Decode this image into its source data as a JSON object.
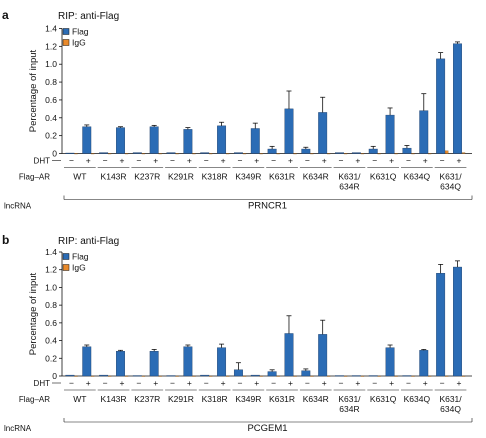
{
  "panels": [
    {
      "letter": "a",
      "title": "RIP: anti-Flag",
      "legend": [
        "Flag",
        "IgG"
      ],
      "ylabel": "Percentage of input",
      "row_labels": {
        "dht": "DHT",
        "flag_ar": "Flag–AR",
        "lncrna": "lncRNA"
      },
      "lncrna": "PRNCR1",
      "groups": [
        {
          "label": [
            "WT"
          ]
        },
        {
          "label": [
            "K143R"
          ]
        },
        {
          "label": [
            "K237R"
          ]
        },
        {
          "label": [
            "K291R"
          ]
        },
        {
          "label": [
            "K318R"
          ]
        },
        {
          "label": [
            "K349R"
          ]
        },
        {
          "label": [
            "K631R"
          ]
        },
        {
          "label": [
            "K634R"
          ]
        },
        {
          "label": [
            "K631/",
            "634R"
          ]
        },
        {
          "label": [
            "K631Q"
          ]
        },
        {
          "label": [
            "K634Q"
          ]
        },
        {
          "label": [
            "K631/",
            "634Q"
          ]
        }
      ],
      "dht_signs": [
        "−",
        "+"
      ],
      "colors": {
        "flag": "#2b6cb5",
        "igg": "#e98a2c"
      },
      "chart_data": {
        "type": "bar",
        "ylim": [
          0,
          1.4
        ],
        "yticks": [
          0,
          0.2,
          0.4,
          0.6,
          0.8,
          1.0,
          1.2,
          1.4
        ],
        "yticklabels": [
          "0",
          "0.2",
          "0.4",
          "0.6",
          "0.8",
          "1.0",
          "1.2",
          "1.4"
        ],
        "series": [
          {
            "name": "Flag",
            "values": [
              0.005,
              0.3,
              0.01,
              0.29,
              0.01,
              0.3,
              0.01,
              0.27,
              0.01,
              0.31,
              0.01,
              0.28,
              0.05,
              0.5,
              0.05,
              0.46,
              0.01,
              0.01,
              0.05,
              0.43,
              0.06,
              0.48,
              1.06,
              1.23
            ],
            "errors": [
              0,
              0.02,
              0,
              0.01,
              0,
              0.015,
              0,
              0.02,
              0,
              0.04,
              0,
              0.06,
              0.03,
              0.2,
              0.02,
              0.17,
              0,
              0,
              0.03,
              0.08,
              0.03,
              0.19,
              0.07,
              0.02
            ]
          },
          {
            "name": "IgG",
            "values": [
              0,
              0,
              0,
              0,
              0,
              0,
              0,
              0,
              0,
              0,
              0,
              0,
              0,
              0,
              0,
              0,
              0,
              0,
              0,
              0,
              0,
              0,
              0.03,
              0.01
            ],
            "errors": [
              0,
              0,
              0,
              0,
              0,
              0,
              0,
              0,
              0,
              0,
              0,
              0,
              0,
              0,
              0,
              0,
              0,
              0,
              0,
              0,
              0,
              0,
              0,
              0
            ]
          }
        ]
      }
    },
    {
      "letter": "b",
      "title": "RIP: anti-Flag",
      "legend": [
        "Flag",
        "IgG"
      ],
      "ylabel": "Percentage of input",
      "row_labels": {
        "dht": "DHT",
        "flag_ar": "Flag–AR",
        "lncrna": "lncRNA"
      },
      "lncrna": "PCGEM1",
      "groups": [
        {
          "label": [
            "WT"
          ]
        },
        {
          "label": [
            "K143R"
          ]
        },
        {
          "label": [
            "K237R"
          ]
        },
        {
          "label": [
            "K291R"
          ]
        },
        {
          "label": [
            "K318R"
          ]
        },
        {
          "label": [
            "K349R"
          ]
        },
        {
          "label": [
            "K631R"
          ]
        },
        {
          "label": [
            "K634R"
          ]
        },
        {
          "label": [
            "K631/",
            "634R"
          ]
        },
        {
          "label": [
            "K631Q"
          ]
        },
        {
          "label": [
            "K634Q"
          ]
        },
        {
          "label": [
            "K631/",
            "634Q"
          ]
        }
      ],
      "dht_signs": [
        "−",
        "+"
      ],
      "colors": {
        "flag": "#2b6cb5",
        "igg": "#e98a2c"
      },
      "chart_data": {
        "type": "bar",
        "ylim": [
          0,
          1.4
        ],
        "yticks": [
          0,
          0.2,
          0.4,
          0.6,
          0.8,
          1.0,
          1.2,
          1.4
        ],
        "yticklabels": [
          "0",
          "0.2",
          "0.4",
          "0.6",
          "0.8",
          "1.0",
          "1.2",
          "1.4"
        ],
        "series": [
          {
            "name": "Flag",
            "values": [
              0.01,
              0.33,
              0.01,
              0.28,
              0.005,
              0.28,
              0.005,
              0.33,
              0.01,
              0.32,
              0.07,
              0.01,
              0.05,
              0.48,
              0.06,
              0.47,
              0.005,
              0.005,
              0.005,
              0.32,
              0.005,
              0.29,
              1.16,
              1.23
            ],
            "errors": [
              0,
              0.02,
              0,
              0.01,
              0,
              0.02,
              0,
              0.02,
              0,
              0.04,
              0.08,
              0,
              0.02,
              0.2,
              0.02,
              0.16,
              0,
              0,
              0,
              0.03,
              0,
              0.01,
              0.1,
              0.07
            ]
          },
          {
            "name": "IgG",
            "values": [
              0,
              0,
              0,
              0,
              0,
              0,
              0,
              0,
              0,
              0,
              0,
              0,
              0,
              0,
              0,
              0,
              0,
              0,
              0,
              0,
              0,
              0,
              0,
              0
            ],
            "errors": [
              0,
              0,
              0,
              0,
              0,
              0,
              0,
              0,
              0,
              0,
              0,
              0,
              0,
              0,
              0,
              0,
              0,
              0,
              0,
              0,
              0,
              0,
              0,
              0
            ]
          }
        ]
      }
    }
  ]
}
